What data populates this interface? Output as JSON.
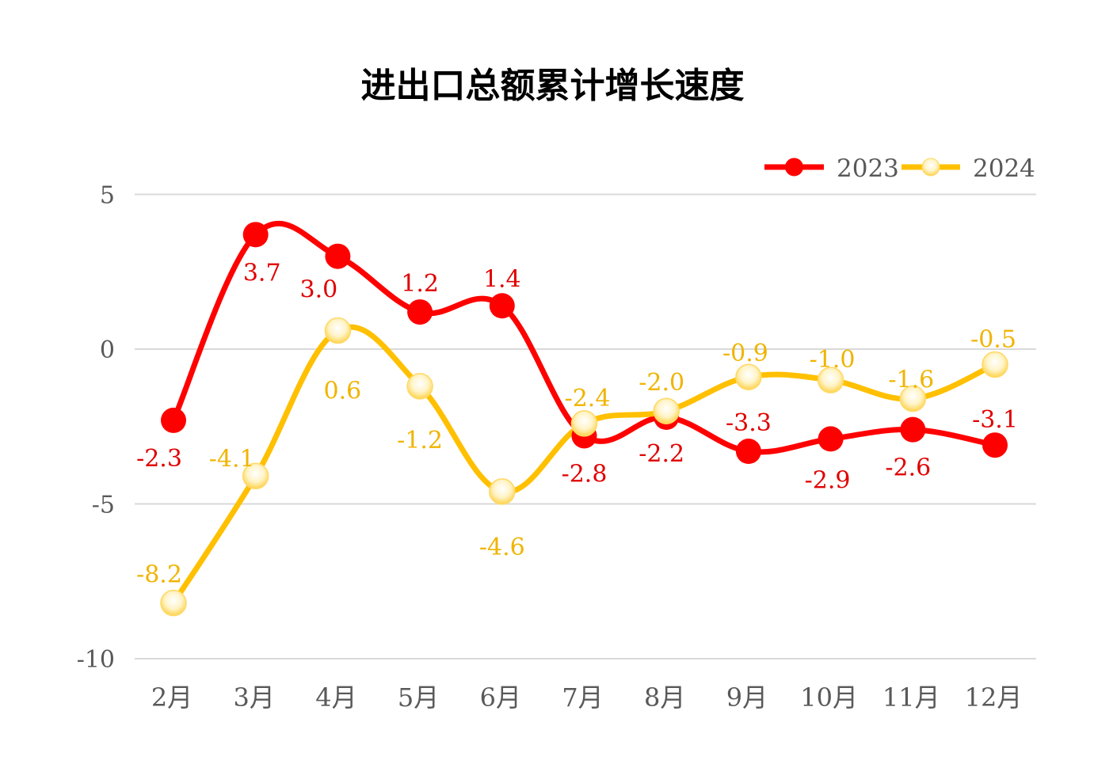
{
  "chart_data": {
    "type": "line",
    "title": "进出口总额累计增长速度",
    "xlabel": "",
    "ylabel": "",
    "categories": [
      "2月",
      "3月",
      "4月",
      "5月",
      "6月",
      "7月",
      "8月",
      "9月",
      "10月",
      "11月",
      "12月"
    ],
    "ylim": [
      -10,
      5
    ],
    "yticks": [
      5,
      0,
      -5,
      -10
    ],
    "ytick_labels": [
      "5",
      "0",
      "-5",
      "-10"
    ],
    "grid": true,
    "smooth": true,
    "legend_position": "top-right",
    "series": [
      {
        "name": "2023",
        "color": "#ff0000",
        "label_color": "#e00000",
        "values": [
          -2.3,
          3.7,
          3.0,
          1.2,
          1.4,
          -2.8,
          -2.2,
          -3.3,
          -2.9,
          -2.6,
          -3.1
        ],
        "labels": [
          "-2.3",
          "3.7",
          "3.0",
          "1.2",
          "1.4",
          "-2.8",
          "-2.2",
          "-3.3",
          "-2.9",
          "-2.6",
          "-3.1"
        ]
      },
      {
        "name": "2024",
        "color": "#ffc000",
        "label_color": "#f0b400",
        "values": [
          -8.2,
          -4.1,
          0.6,
          -1.2,
          -4.6,
          -2.4,
          -2.0,
          -0.9,
          -1.0,
          -1.6,
          -0.5
        ],
        "labels": [
          "-8.2",
          "-4.1",
          "0.6",
          "-1.2",
          "-4.6",
          "-2.4",
          "-2.0",
          "-0.9",
          "-1.0",
          "-1.6",
          "-0.5"
        ]
      }
    ]
  }
}
